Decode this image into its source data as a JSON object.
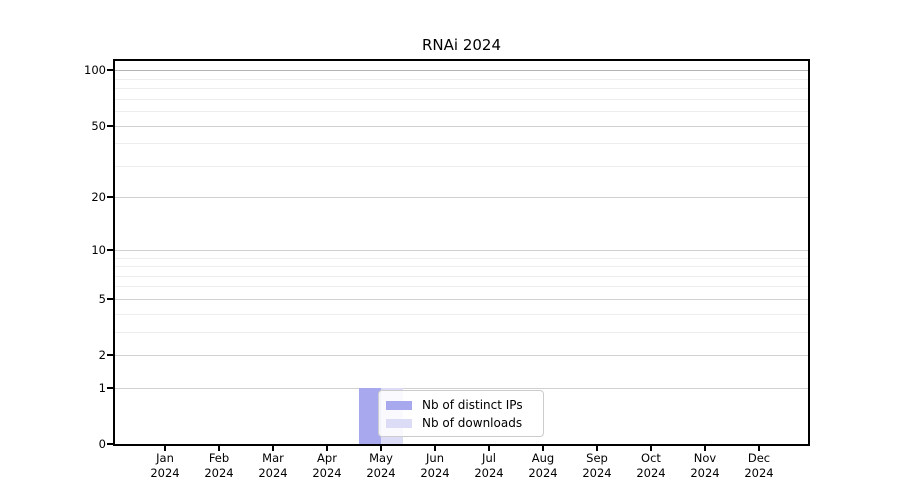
{
  "chart_data": {
    "type": "bar",
    "title": "RNAi 2024",
    "categories": [
      "Jan",
      "Feb",
      "Mar",
      "Apr",
      "May",
      "Jun",
      "Jul",
      "Aug",
      "Sep",
      "Oct",
      "Nov",
      "Dec"
    ],
    "x_tick_year": "2024",
    "series": [
      {
        "name": "Nb of distinct IPs",
        "color": "#a8a8ef",
        "values": [
          0,
          0,
          0,
          0,
          1,
          0,
          0,
          0,
          0,
          0,
          0,
          0
        ]
      },
      {
        "name": "Nb of downloads",
        "color": "#dcdcf7",
        "values": [
          0,
          0,
          0,
          0,
          1,
          0,
          0,
          0,
          0,
          0,
          0,
          0
        ]
      }
    ],
    "y_scale": "log1p",
    "ylim": [
      0,
      112
    ],
    "y_major_ticks": [
      0,
      1,
      2,
      5,
      10,
      20,
      50,
      100
    ],
    "y_minor_ticks": [
      3,
      4,
      6,
      7,
      8,
      9,
      30,
      40,
      60,
      70,
      80,
      90
    ],
    "grid": true,
    "legend_position": "lower center",
    "style": {
      "grid_major": "#d0d0d0",
      "grid_minor": "#ededed",
      "grid_top": "#b4b4b4",
      "axis_color": "#000000",
      "legend_border": "#cccccc",
      "legend_bg": "rgba(255,255,255,0.85)",
      "text_color": "#000000"
    }
  }
}
